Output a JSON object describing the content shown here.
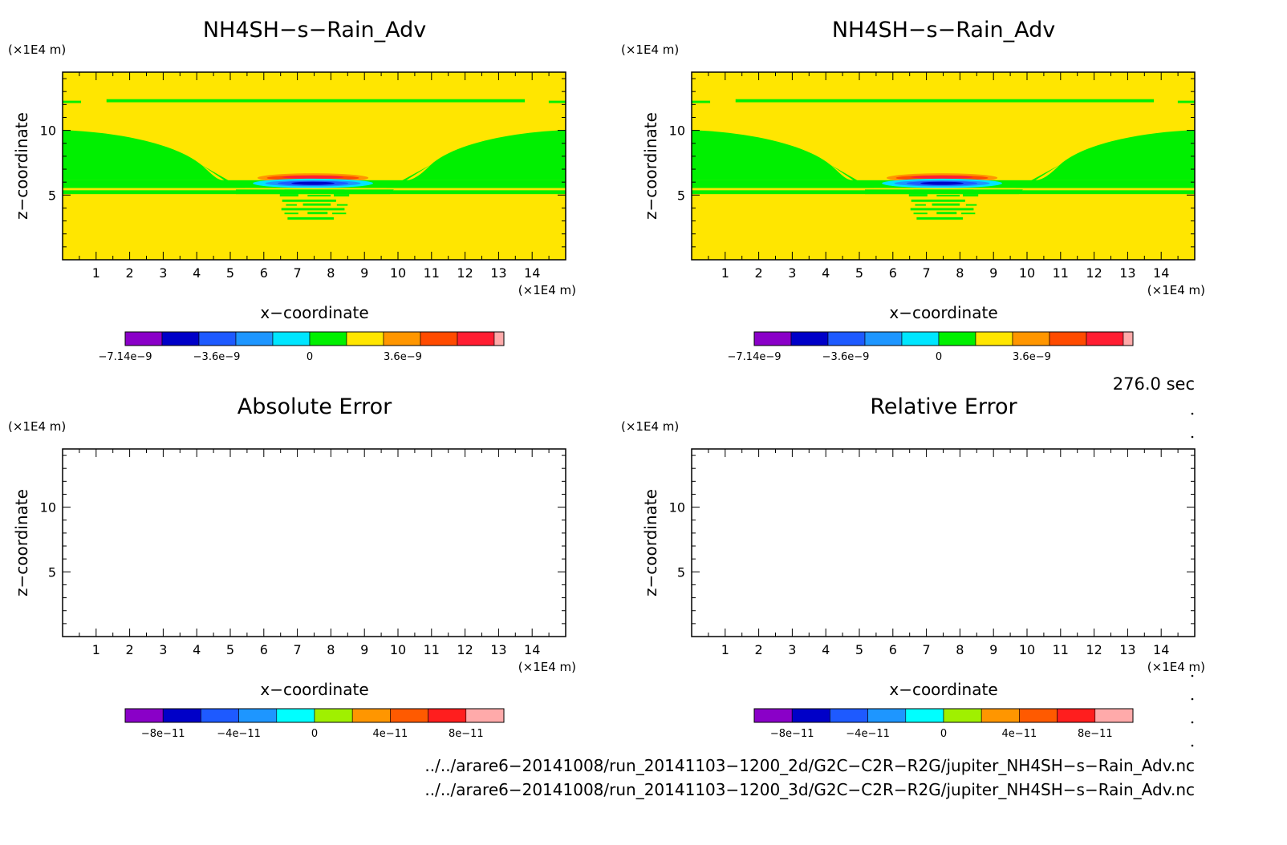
{
  "panels": [
    {
      "title": "NH4SH−s−Rain_Adv",
      "colorbar_ticks": [
        "−7.14e−9",
        "−3.6e−9",
        "0",
        "3.6e−9"
      ],
      "has_field": true
    },
    {
      "title": "NH4SH−s−Rain_Adv",
      "colorbar_ticks": [
        "−7.14e−9",
        "−3.6e−9",
        "0",
        "3.6e−9"
      ],
      "has_field": true
    },
    {
      "title": "Absolute Error",
      "colorbar_ticks": [
        "−8e−11",
        "−4e−11",
        "0",
        "4e−11",
        "8e−11"
      ],
      "has_field": false
    },
    {
      "title": "Relative Error",
      "colorbar_ticks": [
        "−8e−11",
        "−4e−11",
        "0",
        "4e−11",
        "8e−11"
      ],
      "has_field": false
    }
  ],
  "axis": {
    "xlabel": "x−coordinate",
    "ylabel": "z−coordinate",
    "unit": "(×1E4 m)",
    "x_ticks": [
      "1",
      "2",
      "3",
      "4",
      "5",
      "6",
      "7",
      "8",
      "9",
      "10",
      "11",
      "12",
      "13",
      "14"
    ],
    "y_ticks": [
      "5",
      "10"
    ]
  },
  "time_label": "276.0 sec",
  "file_paths": [
    "../../arare6−20141008/run_20141103−1200_2d/G2C−C2R−R2G/jupiter_NH4SH−s−Rain_Adv.nc",
    "../../arare6−20141008/run_20141103−1200_3d/G2C−C2R−R2G/jupiter_NH4SH−s−Rain_Adv.nc"
  ],
  "colors": {
    "field_colorbar": [
      "#8a00c8",
      "#0000c8",
      "#1e5aff",
      "#1e96ff",
      "#00e6ff",
      "#00f000",
      "#ffe600",
      "#ff9600",
      "#ff4b00",
      "#ff1e32",
      "#ffaaaa"
    ],
    "error_colorbar": [
      "#8a00c8",
      "#0000c8",
      "#1e5aff",
      "#1e96ff",
      "#00ffff",
      "#a0f000",
      "#ff9600",
      "#ff5a00",
      "#ff1e1e",
      "#ffaaaa"
    ],
    "background": "#ffe600",
    "negative": "#00f000"
  },
  "chart_data": [
    {
      "type": "heatmap",
      "title": "NH4SH−s−Rain_Adv",
      "xlabel": "x−coordinate",
      "ylabel": "z−coordinate",
      "xlim": [
        0,
        15
      ],
      "ylim": [
        0,
        14.5
      ],
      "colorbar": [
        -7.14e-09,
        7.14e-09
      ]
    },
    {
      "type": "heatmap",
      "title": "NH4SH−s−Rain_Adv",
      "xlabel": "x−coordinate",
      "ylabel": "z−coordinate",
      "xlim": [
        0,
        15
      ],
      "ylim": [
        0,
        14.5
      ],
      "colorbar": [
        -7.14e-09,
        7.14e-09
      ]
    },
    {
      "type": "heatmap",
      "title": "Absolute Error",
      "xlabel": "x−coordinate",
      "ylabel": "z−coordinate",
      "xlim": [
        0,
        15
      ],
      "ylim": [
        0,
        14.5
      ],
      "colorbar": [
        -1e-10,
        1e-10
      ]
    },
    {
      "type": "heatmap",
      "title": "Relative Error",
      "xlabel": "x−coordinate",
      "ylabel": "z−coordinate",
      "xlim": [
        0,
        15
      ],
      "ylim": [
        0,
        14.5
      ],
      "colorbar": [
        -1e-10,
        1e-10
      ]
    }
  ]
}
